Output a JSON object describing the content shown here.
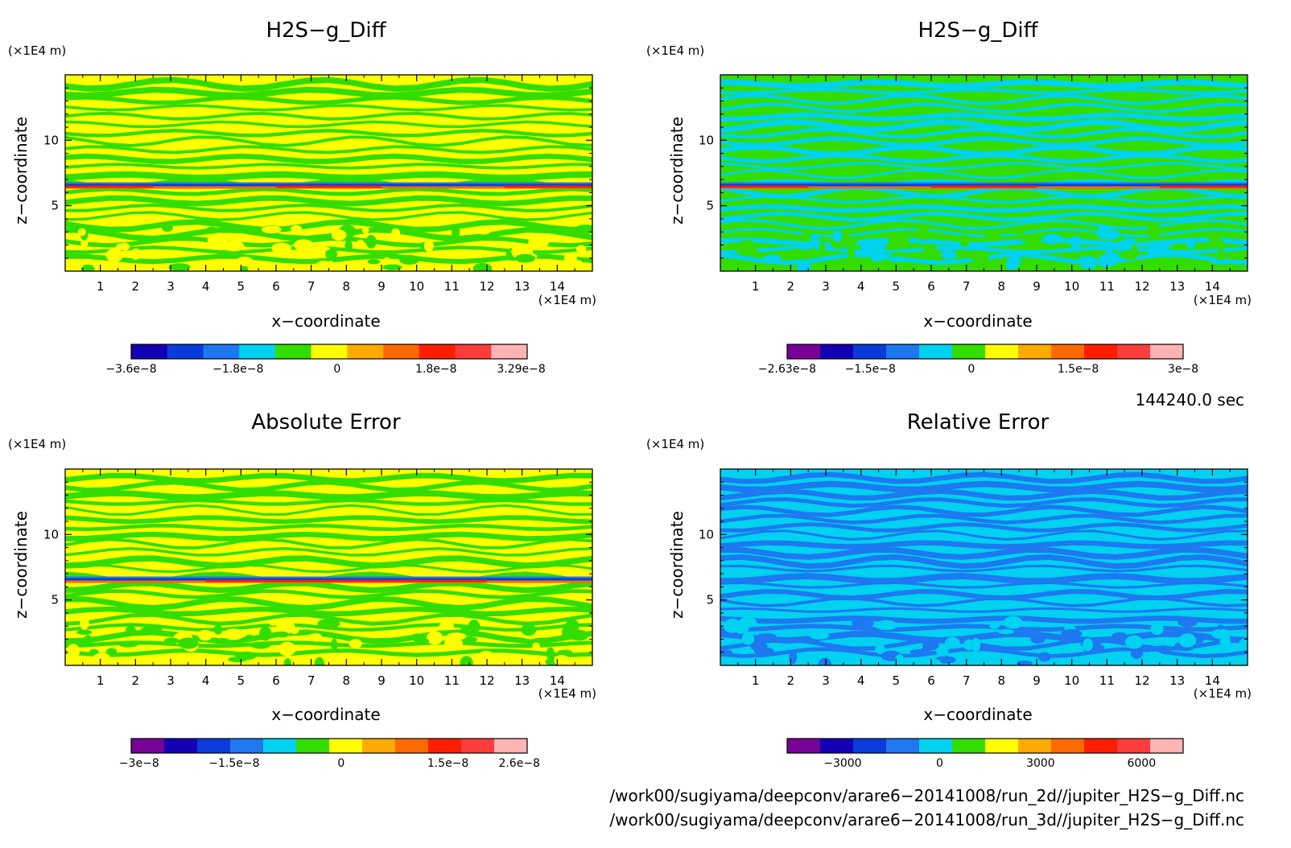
{
  "chart_data": [
    {
      "type": "heatmap",
      "title": "H2S−g_Diff",
      "xlabel": "x−coordinate",
      "ylabel": "z−coordinate",
      "x_unit": "(×1E4 m)",
      "y_unit": "(×1E4 m)",
      "xlim": [
        0,
        15
      ],
      "ylim": [
        0,
        15
      ],
      "xticks": [
        "1",
        "2",
        "3",
        "4",
        "5",
        "6",
        "7",
        "8",
        "9",
        "10",
        "11",
        "12",
        "13",
        "14"
      ],
      "yticks": [
        "5",
        "10"
      ],
      "bg_color": "#ffff00",
      "band_color": "#33dd00",
      "colorbar": {
        "colors": [
          "#1400b4",
          "#0a3cdc",
          "#1e78f0",
          "#00d2f0",
          "#33dd00",
          "#ffff00",
          "#ffaa00",
          "#ff6a00",
          "#ff1e00",
          "#ff3c3c",
          "#ffb4b4"
        ],
        "tick_labels": [
          "−3.6e−8",
          "−1.8e−8",
          "0",
          "1.8e−8",
          "3.29e−8"
        ]
      }
    },
    {
      "type": "heatmap",
      "title": "H2S−g_Diff",
      "xlabel": "x−coordinate",
      "ylabel": "z−coordinate",
      "x_unit": "(×1E4 m)",
      "y_unit": "(×1E4 m)",
      "xlim": [
        0,
        15
      ],
      "ylim": [
        0,
        15
      ],
      "xticks": [
        "1",
        "2",
        "3",
        "4",
        "5",
        "6",
        "7",
        "8",
        "9",
        "10",
        "11",
        "12",
        "13",
        "14"
      ],
      "yticks": [
        "5",
        "10"
      ],
      "bg_color": "#33dd00",
      "band_color": "#00d2f0",
      "colorbar": {
        "colors": [
          "#780096",
          "#1400b4",
          "#0a3cdc",
          "#1e78f0",
          "#00d2f0",
          "#33dd00",
          "#ffff00",
          "#ffaa00",
          "#ff6a00",
          "#ff1e00",
          "#ff3c3c",
          "#ffb4b4"
        ],
        "tick_labels": [
          "−2.63e−8",
          "−1.5e−8",
          "0",
          "1.5e−8",
          "3e−8"
        ]
      }
    },
    {
      "type": "heatmap",
      "title": "Absolute Error",
      "xlabel": "x−coordinate",
      "ylabel": "z−coordinate",
      "x_unit": "(×1E4 m)",
      "y_unit": "(×1E4 m)",
      "xlim": [
        0,
        15
      ],
      "ylim": [
        0,
        15
      ],
      "xticks": [
        "1",
        "2",
        "3",
        "4",
        "5",
        "6",
        "7",
        "8",
        "9",
        "10",
        "11",
        "12",
        "13",
        "14"
      ],
      "yticks": [
        "5",
        "10"
      ],
      "bg_color": "#ffff00",
      "band_color": "#33dd00",
      "colorbar": {
        "colors": [
          "#780096",
          "#1400b4",
          "#0a3cdc",
          "#1e78f0",
          "#00d2f0",
          "#33dd00",
          "#ffff00",
          "#ffaa00",
          "#ff6a00",
          "#ff1e00",
          "#ff3c3c",
          "#ffb4b4"
        ],
        "tick_labels": [
          "−3e−8",
          "−1.5e−8",
          "0",
          "1.5e−8",
          "2.6e−8"
        ]
      }
    },
    {
      "type": "heatmap",
      "title": "Relative Error",
      "xlabel": "x−coordinate",
      "ylabel": "z−coordinate",
      "x_unit": "(×1E4 m)",
      "y_unit": "(×1E4 m)",
      "xlim": [
        0,
        15
      ],
      "ylim": [
        0,
        15
      ],
      "xticks": [
        "1",
        "2",
        "3",
        "4",
        "5",
        "6",
        "7",
        "8",
        "9",
        "10",
        "11",
        "12",
        "13",
        "14"
      ],
      "yticks": [
        "5",
        "10"
      ],
      "bg_color": "#00d2f0",
      "band_color": "#1e78f0",
      "colorbar": {
        "colors": [
          "#780096",
          "#1400b4",
          "#0a3cdc",
          "#1e78f0",
          "#00d2f0",
          "#33dd00",
          "#ffff00",
          "#ffaa00",
          "#ff6a00",
          "#ff1e00",
          "#ff3c3c",
          "#ffb4b4"
        ],
        "tick_labels": [
          "−3000",
          "0",
          "3000",
          "6000"
        ]
      }
    }
  ],
  "time_label": "144240.0 sec",
  "file_paths": [
    "/work00/sugiyama/deepconv/arare6−20141008/run_2d//jupiter_H2S−g_Diff.nc",
    "/work00/sugiyama/deepconv/arare6−20141008/run_3d//jupiter_H2S−g_Diff.nc"
  ]
}
